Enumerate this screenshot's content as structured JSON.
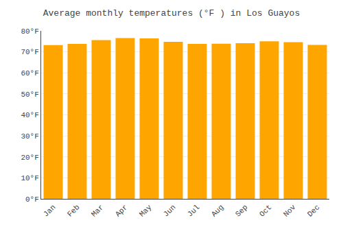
{
  "chart_data": {
    "type": "bar",
    "title": "Average monthly temperatures (°F ) in Los Guayos",
    "categories": [
      "Jan",
      "Feb",
      "Mar",
      "Apr",
      "May",
      "Jun",
      "Jul",
      "Aug",
      "Sep",
      "Oct",
      "Nov",
      "Dec"
    ],
    "values": [
      73.2,
      73.8,
      75.6,
      76.6,
      76.4,
      74.8,
      73.8,
      73.9,
      74.1,
      75.0,
      74.6,
      73.3
    ],
    "color": "#FFA500",
    "ylim": [
      0,
      80
    ],
    "yticks": [
      {
        "value": 0,
        "label": "0°F"
      },
      {
        "value": 10,
        "label": "10°F"
      },
      {
        "value": 20,
        "label": "20°F"
      },
      {
        "value": 30,
        "label": "30°F"
      },
      {
        "value": 40,
        "label": "40°F"
      },
      {
        "value": 50,
        "label": "50°F"
      },
      {
        "value": 60,
        "label": "60°F"
      },
      {
        "value": 70,
        "label": "70°F"
      },
      {
        "value": 80,
        "label": "80°F"
      }
    ],
    "grid": true
  }
}
